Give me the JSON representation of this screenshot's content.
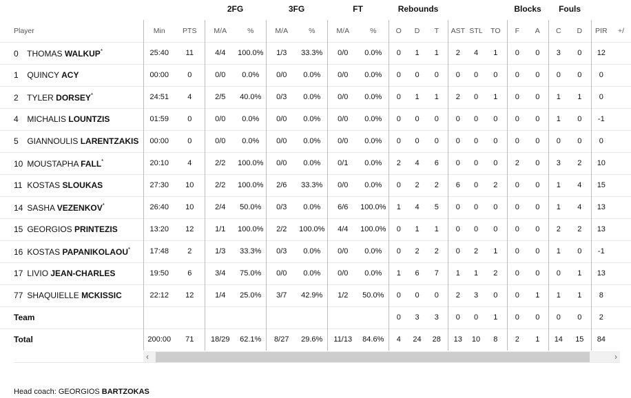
{
  "groups": {
    "fg2": "2FG",
    "fg3": "3FG",
    "ft": "FT",
    "reb": "Rebounds",
    "blk": "Blocks",
    "fouls": "Fouls"
  },
  "headers": [
    "Player",
    "Min",
    "PTS",
    "M/A",
    "%",
    "M/A",
    "%",
    "M/A",
    "%",
    "O",
    "D",
    "T",
    "AST",
    "STL",
    "TO",
    "F",
    "A",
    "C",
    "D",
    "PIR",
    "+/"
  ],
  "players": [
    {
      "no": "0",
      "first": "THOMAS",
      "last": "WALKUP",
      "starter": true,
      "stats": [
        "25:40",
        "11",
        "4/4",
        "100.0%",
        "1/3",
        "33.3%",
        "0/0",
        "0.0%",
        "0",
        "1",
        "1",
        "2",
        "4",
        "1",
        "0",
        "0",
        "3",
        "0",
        "12",
        ""
      ]
    },
    {
      "no": "1",
      "first": "QUINCY",
      "last": "ACY",
      "starter": false,
      "stats": [
        "00:00",
        "0",
        "0/0",
        "0.0%",
        "0/0",
        "0.0%",
        "0/0",
        "0.0%",
        "0",
        "0",
        "0",
        "0",
        "0",
        "0",
        "0",
        "0",
        "0",
        "0",
        "0",
        ""
      ]
    },
    {
      "no": "2",
      "first": "TYLER",
      "last": "DORSEY",
      "starter": true,
      "stats": [
        "24:51",
        "4",
        "2/5",
        "40.0%",
        "0/3",
        "0.0%",
        "0/0",
        "0.0%",
        "0",
        "1",
        "1",
        "2",
        "0",
        "1",
        "0",
        "0",
        "1",
        "1",
        "0",
        ""
      ]
    },
    {
      "no": "4",
      "first": "MICHALIS",
      "last": "LOUNTZIS",
      "starter": false,
      "stats": [
        "01:59",
        "0",
        "0/0",
        "0.0%",
        "0/0",
        "0.0%",
        "0/0",
        "0.0%",
        "0",
        "0",
        "0",
        "0",
        "0",
        "0",
        "0",
        "0",
        "1",
        "0",
        "-1",
        ""
      ]
    },
    {
      "no": "5",
      "first": "GIANNOULIS",
      "last": "LARENTZAKIS",
      "starter": false,
      "stats": [
        "00:00",
        "0",
        "0/0",
        "0.0%",
        "0/0",
        "0.0%",
        "0/0",
        "0.0%",
        "0",
        "0",
        "0",
        "0",
        "0",
        "0",
        "0",
        "0",
        "0",
        "0",
        "0",
        ""
      ]
    },
    {
      "no": "10",
      "first": "MOUSTAPHA",
      "last": "FALL",
      "starter": true,
      "stats": [
        "20:10",
        "4",
        "2/2",
        "100.0%",
        "0/0",
        "0.0%",
        "0/1",
        "0.0%",
        "2",
        "4",
        "6",
        "0",
        "0",
        "0",
        "2",
        "0",
        "3",
        "2",
        "10",
        ""
      ]
    },
    {
      "no": "11",
      "first": "KOSTAS",
      "last": "SLOUKAS",
      "starter": false,
      "stats": [
        "27:30",
        "10",
        "2/2",
        "100.0%",
        "2/6",
        "33.3%",
        "0/0",
        "0.0%",
        "0",
        "2",
        "2",
        "6",
        "0",
        "2",
        "0",
        "0",
        "1",
        "4",
        "15",
        ""
      ]
    },
    {
      "no": "14",
      "first": "SASHA",
      "last": "VEZENKOV",
      "starter": true,
      "stats": [
        "26:40",
        "10",
        "2/4",
        "50.0%",
        "0/3",
        "0.0%",
        "6/6",
        "100.0%",
        "1",
        "4",
        "5",
        "0",
        "0",
        "0",
        "0",
        "0",
        "1",
        "4",
        "13",
        ""
      ]
    },
    {
      "no": "15",
      "first": "GEORGIOS",
      "last": "PRINTEZIS",
      "starter": false,
      "stats": [
        "13:20",
        "12",
        "1/1",
        "100.0%",
        "2/2",
        "100.0%",
        "4/4",
        "100.0%",
        "0",
        "1",
        "1",
        "0",
        "0",
        "0",
        "0",
        "0",
        "2",
        "2",
        "13",
        ""
      ]
    },
    {
      "no": "16",
      "first": "KOSTAS",
      "last": "PAPANIKOLAOU",
      "starter": true,
      "stats": [
        "17:48",
        "2",
        "1/3",
        "33.3%",
        "0/3",
        "0.0%",
        "0/0",
        "0.0%",
        "0",
        "2",
        "2",
        "0",
        "2",
        "1",
        "0",
        "0",
        "1",
        "0",
        "-1",
        ""
      ]
    },
    {
      "no": "17",
      "first": "LIVIO",
      "last": "JEAN-CHARLES",
      "starter": false,
      "stats": [
        "19:50",
        "6",
        "3/4",
        "75.0%",
        "0/0",
        "0.0%",
        "0/0",
        "0.0%",
        "1",
        "6",
        "7",
        "1",
        "1",
        "2",
        "0",
        "0",
        "0",
        "1",
        "13",
        ""
      ]
    },
    {
      "no": "77",
      "first": "SHAQUIELLE",
      "last": "MCKISSIC",
      "starter": false,
      "stats": [
        "22:12",
        "12",
        "1/4",
        "25.0%",
        "3/7",
        "42.9%",
        "1/2",
        "50.0%",
        "0",
        "0",
        "0",
        "2",
        "3",
        "0",
        "0",
        "1",
        "1",
        "1",
        "8",
        ""
      ]
    }
  ],
  "team": {
    "label": "Team",
    "stats": [
      "",
      "",
      "",
      "",
      "",
      "",
      "",
      "",
      "0",
      "3",
      "3",
      "0",
      "0",
      "1",
      "0",
      "0",
      "0",
      "0",
      "2",
      ""
    ]
  },
  "total": {
    "label": "Total",
    "stats": [
      "200:00",
      "71",
      "18/29",
      "62.1%",
      "8/27",
      "29.6%",
      "11/13",
      "84.6%",
      "4",
      "24",
      "28",
      "13",
      "10",
      "8",
      "2",
      "1",
      "14",
      "15",
      "84",
      ""
    ]
  },
  "scrollbar": {
    "left_icon": "chevron-left-icon",
    "right_icon": "chevron-right-icon",
    "left": "‹",
    "right": "›"
  },
  "coach": {
    "label": "Head coach:",
    "first": "GEORGIOS",
    "last": "BARTZOKAS"
  }
}
